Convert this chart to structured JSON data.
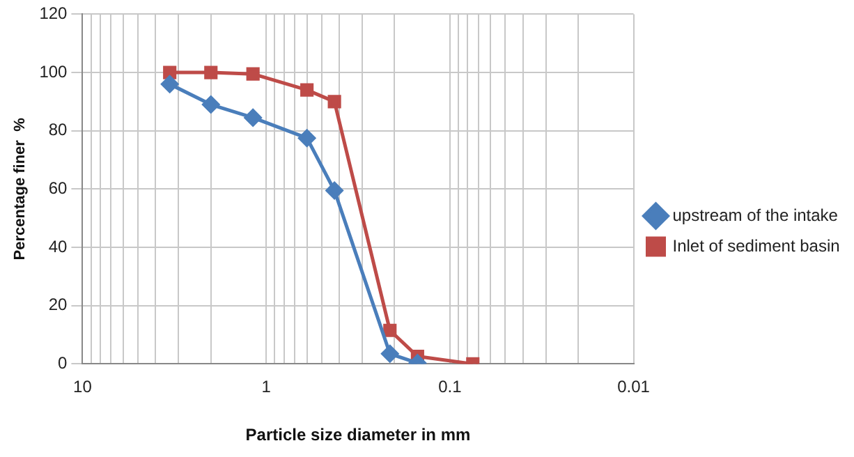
{
  "chart_data": {
    "type": "line",
    "xlabel": "Particle size diameter in mm",
    "ylabel": "Percentage finer  %",
    "log": "x",
    "xlim": [
      10,
      0.01
    ],
    "xticks": [
      10,
      {
        "value": 9,
        "label": null
      },
      {
        "value": 8,
        "label": null
      },
      {
        "value": 7,
        "label": null
      },
      {
        "value": 6,
        "label": null
      },
      {
        "value": 5,
        "label": null
      },
      {
        "value": 4,
        "label": null
      },
      {
        "value": 3,
        "label": null
      },
      {
        "value": 2,
        "label": null
      },
      1,
      {
        "value": 0.9,
        "label": null
      },
      {
        "value": 0.8,
        "label": null
      },
      {
        "value": 0.7,
        "label": null
      },
      {
        "value": 0.6,
        "label": null
      },
      {
        "value": 0.5,
        "label": null
      },
      {
        "value": 0.4,
        "label": null
      },
      {
        "value": 0.3,
        "label": null
      },
      {
        "value": 0.2,
        "label": null
      },
      0.1,
      {
        "value": 0.09,
        "label": null
      },
      {
        "value": 0.08,
        "label": null
      },
      {
        "value": 0.07,
        "label": null
      },
      {
        "value": 0.06,
        "label": null
      },
      {
        "value": 0.05,
        "label": null
      },
      {
        "value": 0.04,
        "label": null
      },
      {
        "value": 0.03,
        "label": null
      },
      {
        "value": 0.02,
        "label": null
      },
      0.01
    ],
    "ylim": [
      0,
      120
    ],
    "yticks": [
      0,
      20,
      40,
      60,
      80,
      100,
      120
    ],
    "grid": true,
    "legend": "right",
    "line_style": "solid",
    "series": [
      {
        "name": "upstream of the intake",
        "color": "#4a7ebb",
        "marker": "diamond",
        "x": [
          3.35,
          2,
          1.18,
          0.6,
          0.425,
          0.212,
          0.15
        ],
        "values": [
          96,
          89,
          84.5,
          77.5,
          59.5,
          3.5,
          0.3
        ]
      },
      {
        "name": "Inlet of sediment basin",
        "color": "#be4b48",
        "marker": "square",
        "x": [
          3.35,
          2,
          1.18,
          0.6,
          0.425,
          0.212,
          0.15,
          0.075
        ],
        "values": [
          100,
          100,
          99.5,
          94,
          90,
          11.5,
          2.6,
          0
        ]
      }
    ]
  }
}
